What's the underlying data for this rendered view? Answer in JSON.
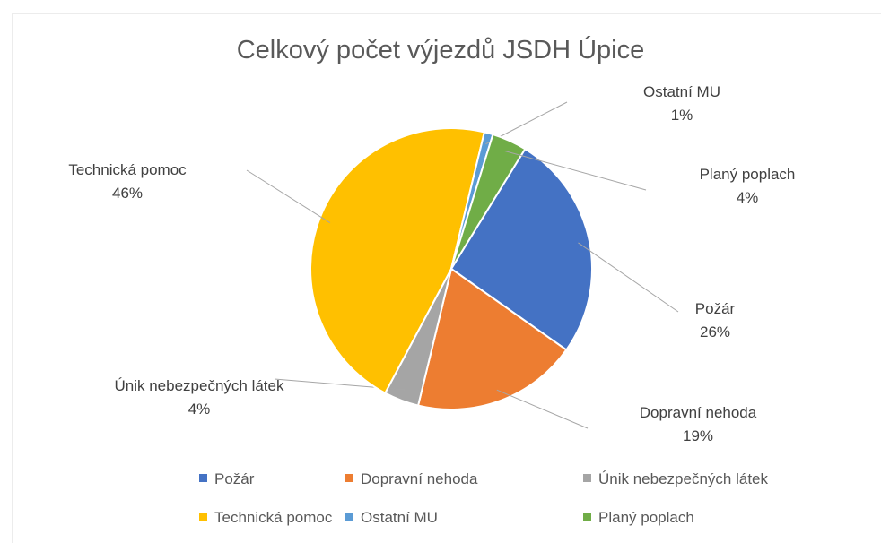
{
  "chart_data": {
    "type": "pie",
    "title": "Celkový počet výjezdů JSDH Úpice",
    "categories": [
      "Požár",
      "Dopravní nehoda",
      "Únik nebezpečných látek",
      "Technická pomoc",
      "Ostatní MU",
      "Planý poplach"
    ],
    "values": [
      26,
      19,
      4,
      46,
      1,
      4
    ],
    "value_labels": [
      "26%",
      "19%",
      "4%",
      "46%",
      "1%",
      "4%"
    ],
    "colors": [
      "#4472c4",
      "#ed7d31",
      "#a5a5a5",
      "#ffc000",
      "#5b9bd5",
      "#70ad47"
    ],
    "legend": "bottom"
  }
}
